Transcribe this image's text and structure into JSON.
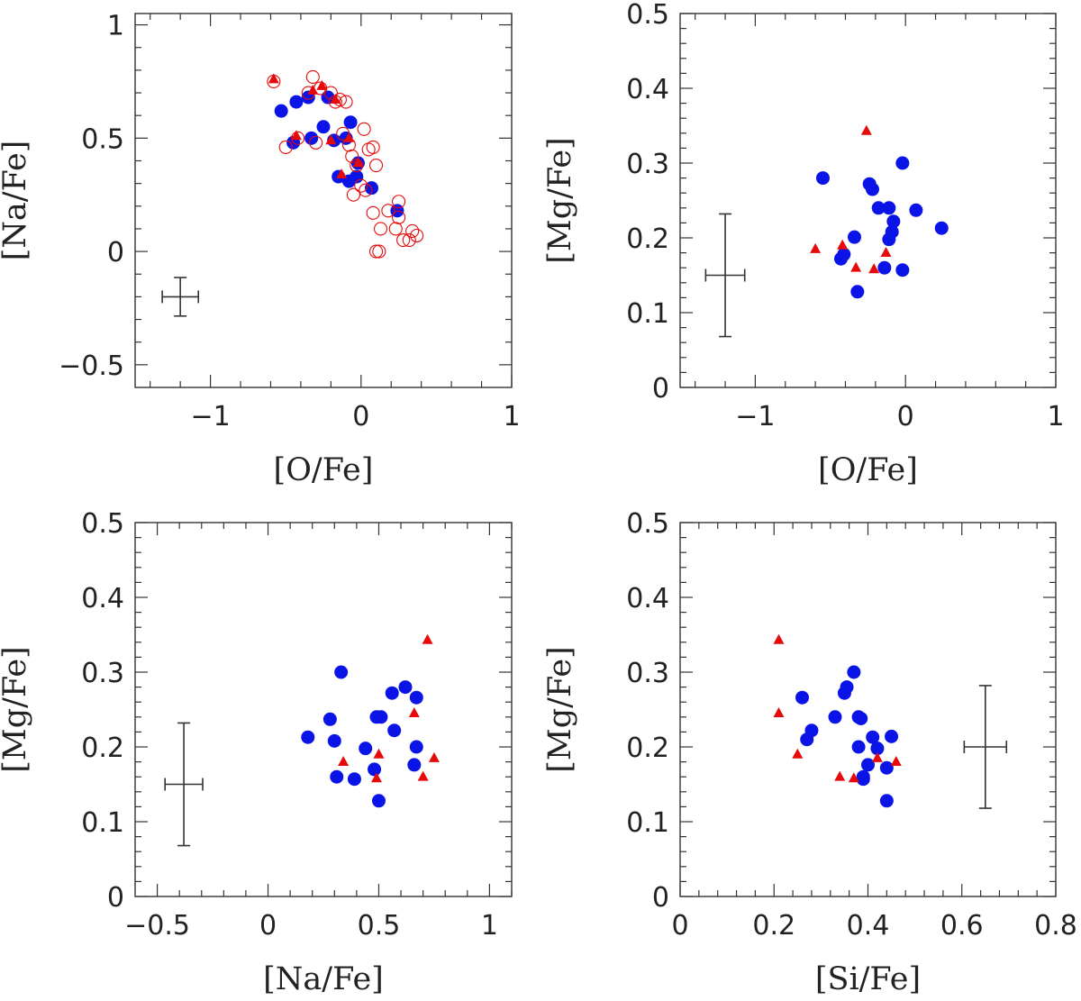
{
  "colors": {
    "blue": "#0a14e6",
    "red": "#e60a0a",
    "axis": "#333333"
  },
  "chart_data": [
    {
      "type": "scatter",
      "title": "",
      "xlabel": "[O/Fe]",
      "ylabel": "[Na/Fe]",
      "xlim": [
        -1.5,
        1.0
      ],
      "ylim": [
        -0.6,
        1.05
      ],
      "xticks": [
        -1,
        0,
        1
      ],
      "xtick_labels": [
        "−1",
        "0",
        "1"
      ],
      "yticks": [
        -0.5,
        0,
        0.5,
        1
      ],
      "ytick_labels": [
        "−0.5",
        "0",
        "0.5",
        "1"
      ],
      "errorbar": {
        "x": -1.2,
        "y": -0.2,
        "xerr": 0.12,
        "yerr": 0.085
      },
      "series": [
        {
          "name": "filled-circles",
          "marker": "filled-circle",
          "color": "#0a14e6",
          "points": [
            [
              -0.53,
              0.62
            ],
            [
              -0.45,
              0.48
            ],
            [
              -0.43,
              0.66
            ],
            [
              -0.35,
              0.68
            ],
            [
              -0.33,
              0.5
            ],
            [
              -0.25,
              0.55
            ],
            [
              -0.22,
              0.68
            ],
            [
              -0.18,
              0.49
            ],
            [
              -0.15,
              0.33
            ],
            [
              -0.1,
              0.5
            ],
            [
              -0.07,
              0.57
            ],
            [
              -0.08,
              0.31
            ],
            [
              -0.03,
              0.33
            ],
            [
              -0.02,
              0.39
            ],
            [
              0.07,
              0.28
            ],
            [
              0.24,
              0.18
            ]
          ]
        },
        {
          "name": "open-circles",
          "marker": "open-circle",
          "color": "#e60a0a",
          "points": [
            [
              -0.58,
              0.75
            ],
            [
              -0.5,
              0.46
            ],
            [
              -0.42,
              0.5
            ],
            [
              -0.35,
              0.7
            ],
            [
              -0.32,
              0.77
            ],
            [
              -0.3,
              0.48
            ],
            [
              -0.27,
              0.72
            ],
            [
              -0.2,
              0.7
            ],
            [
              -0.17,
              0.66
            ],
            [
              -0.14,
              0.67
            ],
            [
              -0.1,
              0.66
            ],
            [
              -0.06,
              0.42
            ],
            [
              -0.12,
              0.52
            ],
            [
              -0.08,
              0.47
            ],
            [
              -0.03,
              0.38
            ],
            [
              0.0,
              0.29
            ],
            [
              0.02,
              0.54
            ],
            [
              0.05,
              0.45
            ],
            [
              0.08,
              0.46
            ],
            [
              0.1,
              0.38
            ],
            [
              0.08,
              0.17
            ],
            [
              0.13,
              0.1
            ],
            [
              0.18,
              0.18
            ],
            [
              0.25,
              0.22
            ],
            [
              0.25,
              0.15
            ],
            [
              0.23,
              0.1
            ],
            [
              0.32,
              0.05
            ],
            [
              0.34,
              0.09
            ],
            [
              0.37,
              0.07
            ],
            [
              0.28,
              0.05
            ],
            [
              0.1,
              0.0
            ],
            [
              0.12,
              0.0
            ],
            [
              0.03,
              0.27
            ],
            [
              -0.05,
              0.25
            ]
          ]
        },
        {
          "name": "triangles",
          "marker": "filled-triangle",
          "color": "#e60a0a",
          "points": [
            [
              -0.58,
              0.76
            ],
            [
              -0.32,
              0.71
            ],
            [
              -0.26,
              0.73
            ],
            [
              -0.17,
              0.67
            ],
            [
              -0.43,
              0.51
            ],
            [
              -0.2,
              0.49
            ],
            [
              -0.13,
              0.34
            ],
            [
              -0.08,
              0.5
            ],
            [
              -0.02,
              0.39
            ]
          ]
        }
      ]
    },
    {
      "type": "scatter",
      "title": "",
      "xlabel": "[O/Fe]",
      "ylabel": "[Mg/Fe]",
      "xlim": [
        -1.5,
        1.0
      ],
      "ylim": [
        0,
        0.5
      ],
      "xticks": [
        -1,
        0,
        1
      ],
      "xtick_labels": [
        "−1",
        "0",
        "1"
      ],
      "yticks": [
        0,
        0.1,
        0.2,
        0.3,
        0.4,
        0.5
      ],
      "ytick_labels": [
        "0",
        "0.1",
        "0.2",
        "0.3",
        "0.4",
        "0.5"
      ],
      "errorbar": {
        "x": -1.2,
        "y": 0.15,
        "xerr": 0.13,
        "yerr": 0.082
      },
      "series": [
        {
          "name": "filled-circles",
          "marker": "filled-circle",
          "color": "#0a14e6",
          "points": [
            [
              -0.55,
              0.28
            ],
            [
              -0.43,
              0.172
            ],
            [
              -0.41,
              0.178
            ],
            [
              -0.34,
              0.201
            ],
            [
              -0.32,
              0.128
            ],
            [
              -0.24,
              0.272
            ],
            [
              -0.22,
              0.265
            ],
            [
              -0.18,
              0.24
            ],
            [
              -0.14,
              0.16
            ],
            [
              -0.11,
              0.24
            ],
            [
              -0.11,
              0.198
            ],
            [
              -0.09,
              0.208
            ],
            [
              -0.08,
              0.222
            ],
            [
              -0.02,
              0.3
            ],
            [
              -0.02,
              0.157
            ],
            [
              0.07,
              0.237
            ],
            [
              0.24,
              0.213
            ]
          ]
        },
        {
          "name": "triangles",
          "marker": "filled-triangle",
          "color": "#e60a0a",
          "points": [
            [
              -0.6,
              0.185
            ],
            [
              -0.42,
              0.19
            ],
            [
              -0.33,
              0.16
            ],
            [
              -0.26,
              0.343
            ],
            [
              -0.21,
              0.158
            ],
            [
              -0.13,
              0.18
            ]
          ]
        }
      ]
    },
    {
      "type": "scatter",
      "title": "",
      "xlabel": "[Na/Fe]",
      "ylabel": "[Mg/Fe]",
      "xlim": [
        -0.6,
        1.1
      ],
      "ylim": [
        0,
        0.5
      ],
      "xticks": [
        -0.5,
        0,
        0.5,
        1
      ],
      "xtick_labels": [
        "−0.5",
        "0",
        "0.5",
        "1"
      ],
      "yticks": [
        0,
        0.1,
        0.2,
        0.3,
        0.4,
        0.5
      ],
      "ytick_labels": [
        "0",
        "0.1",
        "0.2",
        "0.3",
        "0.4",
        "0.5"
      ],
      "errorbar": {
        "x": -0.38,
        "y": 0.15,
        "xerr": 0.085,
        "yerr": 0.082
      },
      "series": [
        {
          "name": "filled-circles",
          "marker": "filled-circle",
          "color": "#0a14e6",
          "points": [
            [
              0.18,
              0.213
            ],
            [
              0.28,
              0.237
            ],
            [
              0.3,
              0.208
            ],
            [
              0.31,
              0.16
            ],
            [
              0.33,
              0.3
            ],
            [
              0.39,
              0.157
            ],
            [
              0.44,
              0.198
            ],
            [
              0.48,
              0.17
            ],
            [
              0.49,
              0.24
            ],
            [
              0.51,
              0.24
            ],
            [
              0.5,
              0.128
            ],
            [
              0.56,
              0.272
            ],
            [
              0.57,
              0.222
            ],
            [
              0.62,
              0.28
            ],
            [
              0.66,
              0.176
            ],
            [
              0.67,
              0.266
            ],
            [
              0.67,
              0.2
            ]
          ]
        },
        {
          "name": "triangles",
          "marker": "filled-triangle",
          "color": "#e60a0a",
          "points": [
            [
              0.34,
              0.18
            ],
            [
              0.49,
              0.158
            ],
            [
              0.5,
              0.19
            ],
            [
              0.66,
              0.245
            ],
            [
              0.7,
              0.16
            ],
            [
              0.72,
              0.343
            ],
            [
              0.75,
              0.185
            ]
          ]
        }
      ]
    },
    {
      "type": "scatter",
      "title": "",
      "xlabel": "[Si/Fe]",
      "ylabel": "[Mg/Fe]",
      "xlim": [
        0,
        0.8
      ],
      "ylim": [
        0,
        0.5
      ],
      "xticks": [
        0,
        0.2,
        0.4,
        0.6,
        0.8
      ],
      "xtick_labels": [
        "0",
        "0.2",
        "0.4",
        "0.6",
        "0.8"
      ],
      "yticks": [
        0,
        0.1,
        0.2,
        0.3,
        0.4,
        0.5
      ],
      "ytick_labels": [
        "0",
        "0.1",
        "0.2",
        "0.3",
        "0.4",
        "0.5"
      ],
      "errorbar": {
        "x": 0.65,
        "y": 0.2,
        "xerr": 0.045,
        "yerr": 0.082
      },
      "series": [
        {
          "name": "filled-circles",
          "marker": "filled-circle",
          "color": "#0a14e6",
          "points": [
            [
              0.26,
              0.266
            ],
            [
              0.27,
              0.21
            ],
            [
              0.28,
              0.222
            ],
            [
              0.33,
              0.24
            ],
            [
              0.35,
              0.272
            ],
            [
              0.355,
              0.28
            ],
            [
              0.37,
              0.3
            ],
            [
              0.38,
              0.24
            ],
            [
              0.38,
              0.2
            ],
            [
              0.385,
              0.238
            ],
            [
              0.39,
              0.16
            ],
            [
              0.39,
              0.157
            ],
            [
              0.4,
              0.176
            ],
            [
              0.41,
              0.213
            ],
            [
              0.42,
              0.198
            ],
            [
              0.44,
              0.172
            ],
            [
              0.44,
              0.128
            ],
            [
              0.45,
              0.214
            ]
          ]
        },
        {
          "name": "triangles",
          "marker": "filled-triangle",
          "color": "#e60a0a",
          "points": [
            [
              0.21,
              0.343
            ],
            [
              0.21,
              0.245
            ],
            [
              0.25,
              0.19
            ],
            [
              0.34,
              0.16
            ],
            [
              0.37,
              0.158
            ],
            [
              0.42,
              0.185
            ],
            [
              0.46,
              0.18
            ]
          ]
        }
      ]
    }
  ]
}
